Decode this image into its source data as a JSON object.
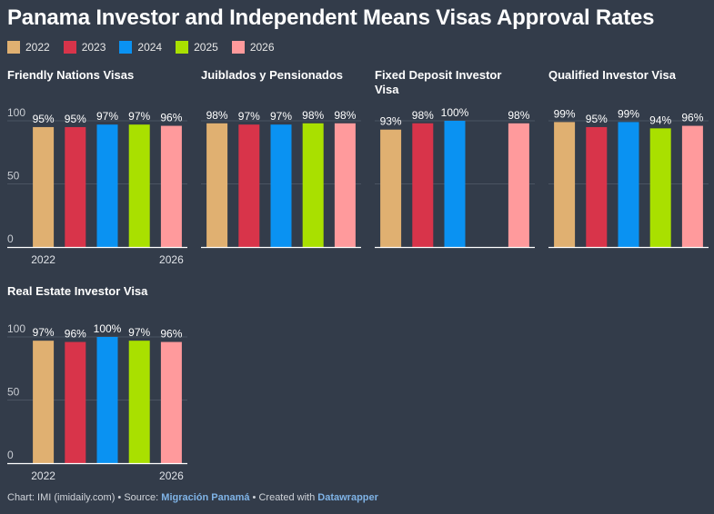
{
  "title": "Panama Investor and Independent Means Visas Approval Rates",
  "legend": [
    {
      "label": "2022",
      "color": "#e0b071"
    },
    {
      "label": "2023",
      "color": "#d8344a"
    },
    {
      "label": "2024",
      "color": "#0a92f2"
    },
    {
      "label": "2025",
      "color": "#a9e000"
    },
    {
      "label": "2026",
      "color": "#ff9a9c"
    }
  ],
  "chart_data": [
    {
      "type": "bar",
      "title": "Friendly Nations Visas",
      "categories": [
        "2022",
        "2023",
        "2024",
        "2025",
        "2026"
      ],
      "values": [
        95,
        95,
        97,
        97,
        96
      ],
      "labels": [
        "95%",
        "95%",
        "97%",
        "97%",
        "96%"
      ],
      "ylim": [
        0,
        100
      ],
      "yticks": [
        "0",
        "50",
        "100"
      ],
      "xticks": [
        "2022",
        "2026"
      ]
    },
    {
      "type": "bar",
      "title": "Juiblados y Pensionados",
      "categories": [
        "2022",
        "2023",
        "2024",
        "2025",
        "2026"
      ],
      "values": [
        98,
        97,
        97,
        98,
        98
      ],
      "labels": [
        "98%",
        "97%",
        "97%",
        "98%",
        "98%"
      ],
      "ylim": [
        0,
        100
      ]
    },
    {
      "type": "bar",
      "title": "Fixed Deposit Investor Visa",
      "categories": [
        "2022",
        "2023",
        "2024",
        "2025",
        "2026"
      ],
      "values": [
        93,
        98,
        100,
        null,
        98
      ],
      "labels": [
        "93%",
        "98%",
        "100%",
        "",
        "98%"
      ],
      "ylim": [
        0,
        100
      ]
    },
    {
      "type": "bar",
      "title": "Qualified Investor Visa",
      "categories": [
        "2022",
        "2023",
        "2024",
        "2025",
        "2026"
      ],
      "values": [
        99,
        95,
        99,
        94,
        96
      ],
      "labels": [
        "99%",
        "95%",
        "99%",
        "94%",
        "96%"
      ],
      "ylim": [
        0,
        100
      ]
    },
    {
      "type": "bar",
      "title": "Real Estate Investor Visa",
      "categories": [
        "2022",
        "2023",
        "2024",
        "2025",
        "2026"
      ],
      "values": [
        97,
        96,
        100,
        97,
        96
      ],
      "labels": [
        "97%",
        "96%",
        "100%",
        "97%",
        "96%"
      ],
      "ylim": [
        0,
        100
      ],
      "yticks": [
        "0",
        "50",
        "100"
      ],
      "xticks": [
        "2022",
        "2026"
      ]
    }
  ],
  "footer": {
    "prefix": "Chart: IMI (imidaily.com) • Source: ",
    "source": "Migración Panamá",
    "middle": " • Created with ",
    "tool": "Datawrapper"
  }
}
